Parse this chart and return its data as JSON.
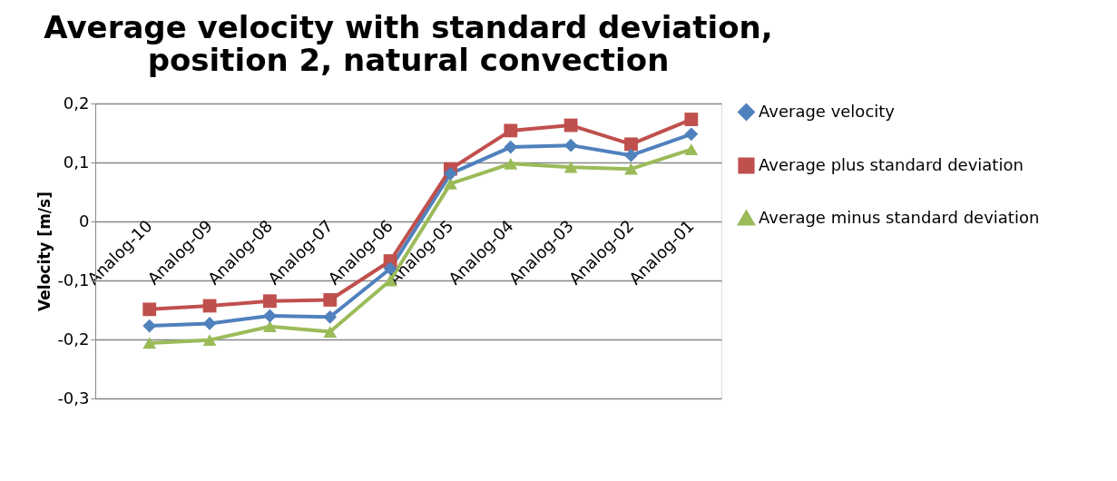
{
  "chart_data": {
    "type": "line",
    "title": "Average velocity with standard deviation, position 2, natural convection",
    "ylabel": "Velocity [m/s]",
    "categories": [
      "Analog-10",
      "Analog-09",
      "Analog-08",
      "Analog-07",
      "Analog-06",
      "Analog-05",
      "Analog-04",
      "Analog-03",
      "Analog-02",
      "Analog-01"
    ],
    "series": [
      {
        "name": "Average velocity",
        "color": "#4f81bd",
        "marker": "diamond",
        "values": [
          -0.177,
          -0.173,
          -0.16,
          -0.162,
          -0.08,
          0.081,
          0.126,
          0.129,
          0.112,
          0.148
        ]
      },
      {
        "name": "Average plus standard deviation",
        "color": "#c0504d",
        "marker": "square",
        "values": [
          -0.149,
          -0.143,
          -0.135,
          -0.133,
          -0.067,
          0.089,
          0.154,
          0.163,
          0.131,
          0.173
        ]
      },
      {
        "name": "Average minus standard deviation",
        "color": "#9bbb59",
        "marker": "triangle",
        "values": [
          -0.206,
          -0.201,
          -0.178,
          -0.187,
          -0.1,
          0.064,
          0.098,
          0.092,
          0.089,
          0.122
        ]
      }
    ],
    "ylim": [
      -0.3,
      0.2
    ],
    "yticks": [
      {
        "value": -0.3,
        "label": "-0,3"
      },
      {
        "value": -0.2,
        "label": "-0,2"
      },
      {
        "value": -0.1,
        "label": "-0,1"
      },
      {
        "value": 0,
        "label": "0"
      },
      {
        "value": 0.1,
        "label": "0,1"
      },
      {
        "value": 0.2,
        "label": "0,2"
      }
    ],
    "grid": "y",
    "legend": "right",
    "line_style": "solid"
  }
}
